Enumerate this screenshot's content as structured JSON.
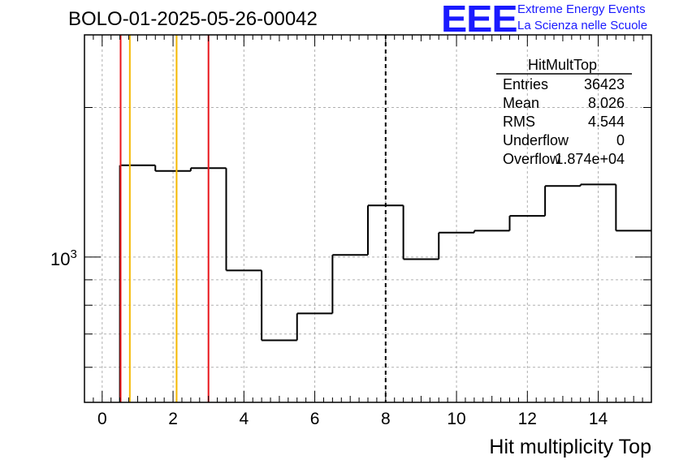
{
  "title": "BOLO-01-2025-05-26-00042",
  "logo": {
    "mark": "EEE",
    "line1": "Extreme Energy Events",
    "line2": "La Scienza nelle Scuole"
  },
  "colors": {
    "histogram": "#000000",
    "red_lines": "#e8141a",
    "orange_lines": "#f5b800",
    "logo": "#1a1aff",
    "grid": "#b0b0b0"
  },
  "stats": {
    "name": "HitMultTop",
    "rows": [
      {
        "label": "Entries",
        "value": "36423"
      },
      {
        "label": "Mean",
        "value": "8.026"
      },
      {
        "label": "RMS",
        "value": "4.544"
      },
      {
        "label": "Underflow",
        "value": "0"
      },
      {
        "label": "Overflow",
        "value": "1.874e+04"
      }
    ]
  },
  "chart_data": {
    "type": "histogram",
    "xlabel": "Hit multiplicity Top",
    "ylabel": "",
    "xlim": [
      -0.5,
      15.5
    ],
    "ylim": [
      510,
      2800
    ],
    "yscale": "log",
    "grid": true,
    "x_ticks": [
      0,
      2,
      4,
      6,
      8,
      10,
      12,
      14
    ],
    "y_tick_label": {
      "value": 1000,
      "base": "10",
      "exp": "3"
    },
    "bin_edges": [
      0.5,
      1.5,
      2.5,
      3.5,
      4.5,
      5.5,
      6.5,
      7.5,
      8.5,
      9.5,
      10.5,
      11.5,
      12.5,
      13.5,
      14.5,
      15.5
    ],
    "bin_values": [
      1530,
      1490,
      1510,
      940,
      680,
      770,
      1010,
      1270,
      990,
      1120,
      1130,
      1210,
      1390,
      1400,
      1130
    ],
    "vertical_lines": [
      {
        "x": 0.52,
        "color": "red",
        "style": "solid"
      },
      {
        "x": 0.78,
        "color": "orange",
        "style": "solid"
      },
      {
        "x": 2.1,
        "color": "orange",
        "style": "solid"
      },
      {
        "x": 3.0,
        "color": "red",
        "style": "solid"
      },
      {
        "x": 8.0,
        "color": "black",
        "style": "dashed"
      }
    ]
  }
}
